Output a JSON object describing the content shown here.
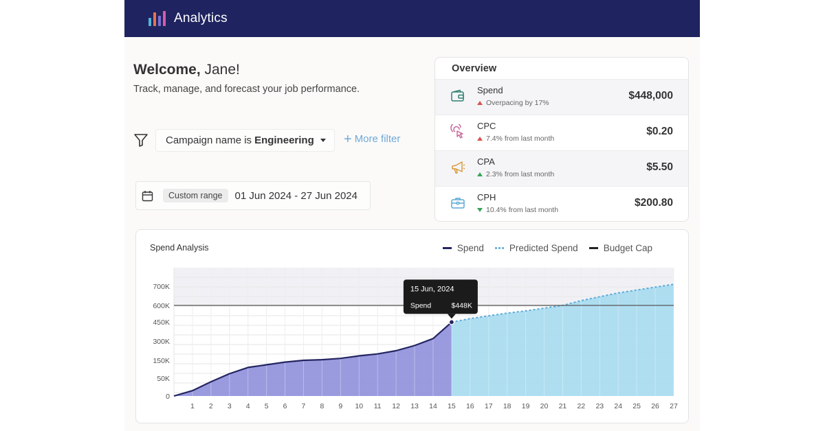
{
  "header": {
    "title": "Analytics",
    "logo_colors": [
      "#4fb6d8",
      "#e7734f",
      "#7c6fd4",
      "#d45ea8"
    ]
  },
  "welcome": {
    "greeting": "Welcome,",
    "name": "Jane!",
    "subtitle": "Track, manage, and forecast your job performance."
  },
  "filter": {
    "prefix": "Campaign name is",
    "value": "Engineering",
    "more_label": "More filter"
  },
  "date_range": {
    "chip": "Custom range",
    "range": "01 Jun 2024 - 27 Jun 2024"
  },
  "overview": {
    "title": "Overview",
    "metrics": [
      {
        "name": "Spend",
        "sub": "Overpacing by 17%",
        "value": "$448,000",
        "icon": "wallet-icon",
        "trend": "up",
        "trend_color": "#d9534f"
      },
      {
        "name": "CPC",
        "sub": "7.4% from last month",
        "value": "$0.20",
        "icon": "tap-icon",
        "trend": "up",
        "trend_color": "#d9534f"
      },
      {
        "name": "CPA",
        "sub": "2.3% from last month",
        "value": "$5.50",
        "icon": "megaphone-icon",
        "trend": "up",
        "trend_color": "#3aa35a"
      },
      {
        "name": "CPH",
        "sub": "10.4% from last month",
        "value": "$200.80",
        "icon": "briefcase-icon",
        "trend": "down",
        "trend_color": "#3aa35a"
      }
    ]
  },
  "chart_data": {
    "type": "area",
    "title": "Spend Analysis",
    "legend": [
      "Spend",
      "Predicted Spend",
      "Budget Cap"
    ],
    "x": [
      1,
      2,
      3,
      4,
      5,
      6,
      7,
      8,
      9,
      10,
      11,
      12,
      13,
      14,
      15,
      16,
      17,
      18,
      19,
      20,
      21,
      22,
      23,
      24,
      25,
      26,
      27
    ],
    "y_ticks": [
      "0",
      "50K",
      "150K",
      "300K",
      "450K",
      "600K",
      "700K"
    ],
    "y_tick_values": [
      0,
      50000,
      150000,
      300000,
      450000,
      600000,
      700000
    ],
    "series": [
      {
        "name": "Spend",
        "x": [
          0,
          1,
          2,
          3,
          4,
          5,
          6,
          7,
          8,
          9,
          10,
          11,
          12,
          13,
          14,
          15
        ],
        "values": [
          0,
          15000,
          40000,
          75000,
          110000,
          125000,
          140000,
          150000,
          155000,
          165000,
          185000,
          200000,
          225000,
          265000,
          320000,
          448000
        ]
      },
      {
        "name": "Predicted Spend",
        "x": [
          15,
          16,
          17,
          18,
          19,
          20,
          21,
          22,
          23,
          24,
          25,
          26,
          27
        ],
        "values": [
          448000,
          480000,
          505000,
          530000,
          550000,
          575000,
          600000,
          625000,
          645000,
          665000,
          680000,
          695000,
          710000
        ]
      }
    ],
    "budget_cap": 600000,
    "tooltip": {
      "date": "15 Jun, 2024",
      "label": "Spend",
      "value": "$448K"
    },
    "colors": {
      "spend_line": "#232560",
      "spend_fill": "#8f8fdc",
      "predicted_line": "#5aa9d6",
      "predicted_fill": "#a6daef",
      "cap": "#555555"
    }
  }
}
